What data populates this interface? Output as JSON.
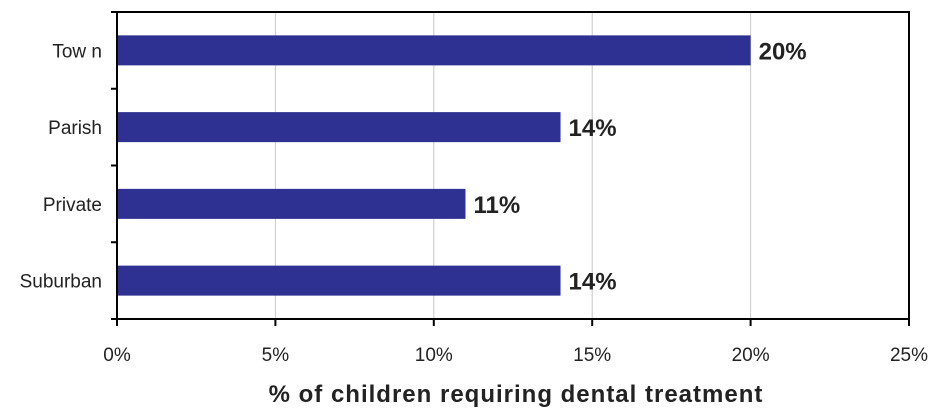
{
  "chart_data": {
    "type": "bar",
    "orientation": "horizontal",
    "categories": [
      "Tow n",
      "Parish",
      "Private",
      "Suburban"
    ],
    "values": [
      20,
      14,
      11,
      14
    ],
    "data_labels": [
      "20%",
      "14%",
      "11%",
      "14%"
    ],
    "title": "",
    "xlabel": "% of children requiring dental treatment",
    "ylabel": "",
    "xlim": [
      0,
      25
    ],
    "x_ticks": [
      0,
      5,
      10,
      15,
      20,
      25
    ],
    "x_tick_labels": [
      "0%",
      "5%",
      "10%",
      "15%",
      "20%",
      "25%"
    ],
    "grid": "vertical",
    "legend": "none",
    "colors": {
      "bar": "#2e3192",
      "grid": "#c8c8c8",
      "axis": "#000000",
      "text": "#222222"
    }
  }
}
